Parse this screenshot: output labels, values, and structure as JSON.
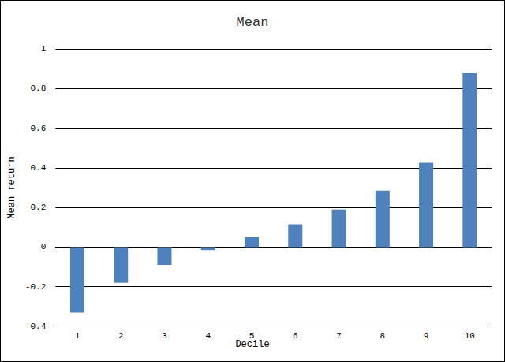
{
  "chart_data": {
    "type": "bar",
    "title": "Mean",
    "x_label": "Decile",
    "y_label": "Mean return",
    "categories": [
      "1",
      "2",
      "3",
      "4",
      "5",
      "6",
      "7",
      "8",
      "9",
      "10"
    ],
    "values": [
      -0.33,
      -0.18,
      -0.09,
      -0.015,
      0.05,
      0.115,
      0.19,
      0.285,
      0.425,
      0.88
    ],
    "color": "#4f81bd",
    "ylim": [
      -0.4,
      1
    ],
    "yticks": [
      -0.4,
      -0.2,
      0,
      0.2,
      0.4,
      0.6,
      0.8,
      1
    ],
    "grid": true
  }
}
